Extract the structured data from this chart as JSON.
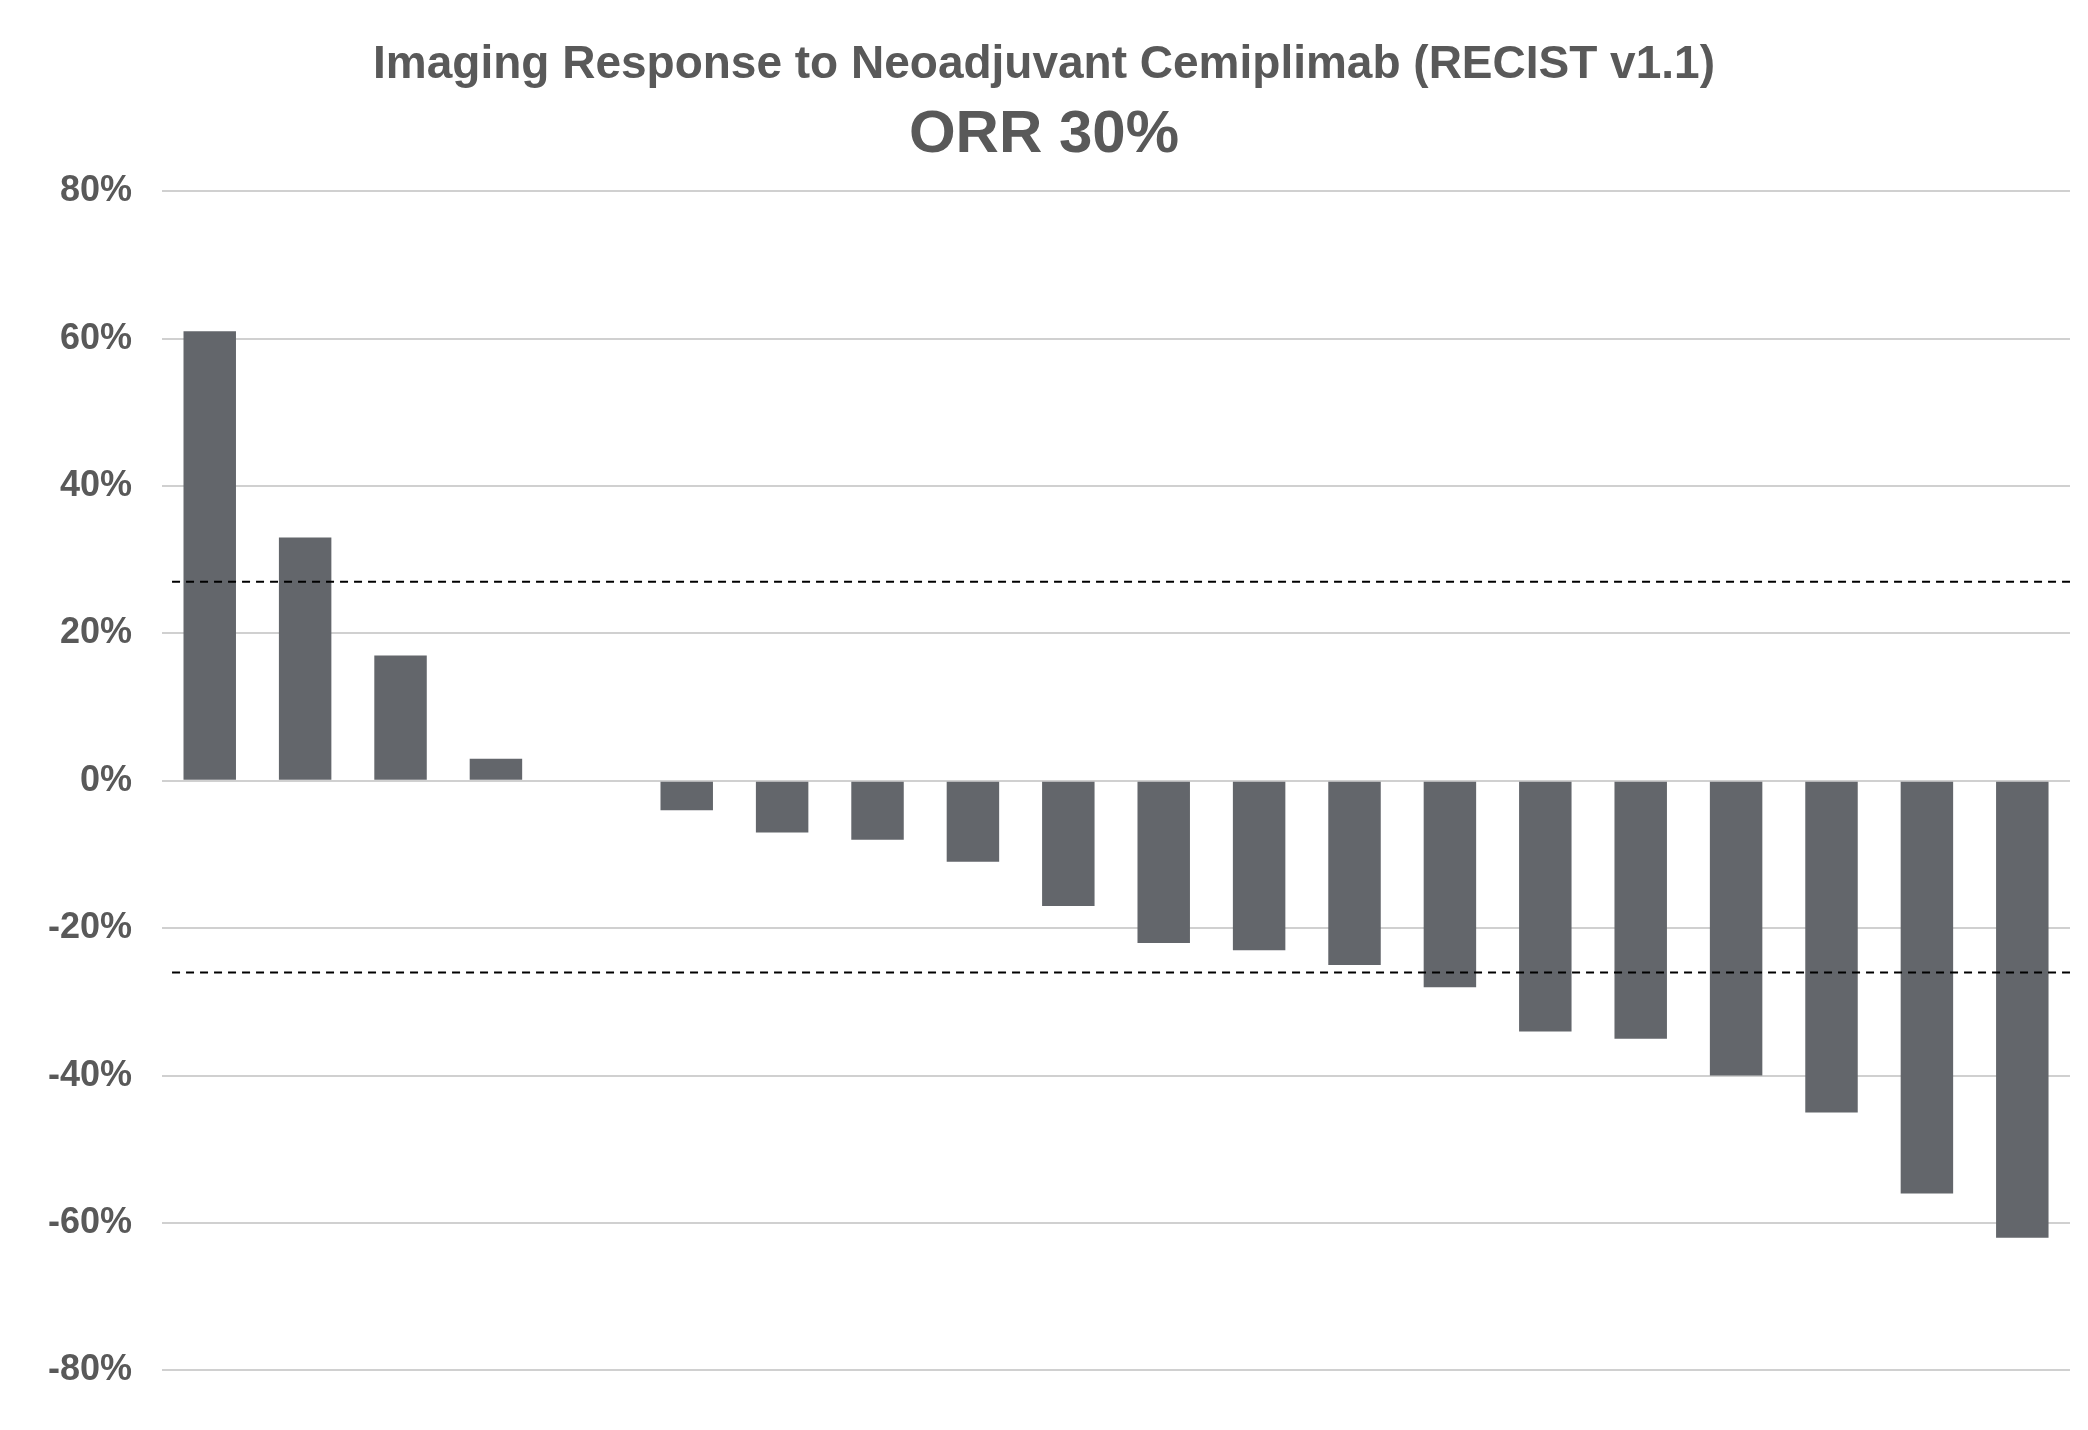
{
  "chart_data": {
    "type": "bar",
    "title": "Imaging Response to Neoadjuvant Cemiplimab (RECIST v1.1)",
    "subtitle": "ORR 30%",
    "categories": [
      null,
      null,
      null,
      null,
      null,
      null,
      null,
      null,
      null,
      null,
      null,
      null,
      null,
      null,
      null,
      null,
      null,
      null,
      null,
      null
    ],
    "values": [
      61,
      33,
      17,
      3,
      0,
      -4,
      -7,
      -8,
      -11,
      -17,
      -22,
      -23,
      -25,
      -28,
      -34,
      -35,
      -40,
      -45,
      -56,
      -62
    ],
    "color": "#63666b",
    "ylim": [
      -80,
      80
    ],
    "yticks": [
      {
        "value": -80,
        "label": "-80%"
      },
      {
        "value": -60,
        "label": "-60%"
      },
      {
        "value": -40,
        "label": "-40%"
      },
      {
        "value": -20,
        "label": "-20%"
      },
      {
        "value": 0,
        "label": "0%"
      },
      {
        "value": 20,
        "label": "20%"
      },
      {
        "value": 40,
        "label": "40%"
      },
      {
        "value": 60,
        "label": "60%"
      },
      {
        "value": 80,
        "label": "80%"
      }
    ],
    "grid": "y",
    "tick_labels": "y",
    "legend": false,
    "ref_lines": [
      {
        "axis": "y",
        "value": 27,
        "color": "#000000",
        "line_style": "dashed"
      },
      {
        "axis": "y",
        "value": -26,
        "color": "#000000",
        "line_style": "dashed"
      }
    ]
  }
}
